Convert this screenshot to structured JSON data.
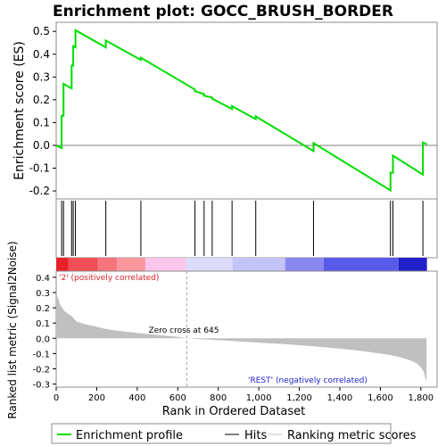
{
  "chart_data": {
    "type": "line",
    "title": "Enrichment plot: GOCC_BRUSH_BORDER",
    "top_panel": {
      "ylabel": "Enrichment score (ES)",
      "ylim": [
        -0.235,
        0.54
      ],
      "yticks": [
        -0.2,
        -0.1,
        0.0,
        0.1,
        0.2,
        0.3,
        0.4,
        0.5
      ],
      "ytick_labels": [
        "-0.2",
        "-0.1",
        "0.0",
        "0.1",
        "0.2",
        "0.3",
        "0.4",
        "0.5"
      ],
      "series_name": "Enrichment profile",
      "color": "#00dd00",
      "points": [
        [
          0,
          0
        ],
        [
          27,
          -0.012
        ],
        [
          27,
          0.13
        ],
        [
          36,
          0.13
        ],
        [
          36,
          0.27
        ],
        [
          76,
          0.25
        ],
        [
          76,
          0.35
        ],
        [
          84,
          0.35
        ],
        [
          84,
          0.435
        ],
        [
          95,
          0.43
        ],
        [
          95,
          0.505
        ],
        [
          245,
          0.43
        ],
        [
          245,
          0.46
        ],
        [
          418,
          0.375
        ],
        [
          418,
          0.385
        ],
        [
          685,
          0.245
        ],
        [
          685,
          0.238
        ],
        [
          730,
          0.225
        ],
        [
          730,
          0.218
        ],
        [
          770,
          0.21
        ],
        [
          770,
          0.205
        ],
        [
          868,
          0.16
        ],
        [
          868,
          0.172
        ],
        [
          985,
          0.115
        ],
        [
          985,
          0.127
        ],
        [
          1270,
          -0.025
        ],
        [
          1270,
          0.01
        ],
        [
          1650,
          -0.198
        ],
        [
          1650,
          -0.12
        ],
        [
          1662,
          -0.12
        ],
        [
          1662,
          -0.045
        ],
        [
          1810,
          -0.128
        ],
        [
          1810,
          0.012
        ],
        [
          1830,
          0.005
        ]
      ]
    },
    "hits": [
      27,
      36,
      76,
      84,
      95,
      245,
      418,
      685,
      730,
      770,
      868,
      985,
      1270,
      1650,
      1662,
      1810
    ],
    "hits_label": "Hits",
    "bottom_panel": {
      "ylabel": "Ranked list metric (Signal2Noise)",
      "ylim": [
        -0.32,
        0.44
      ],
      "yticks": [
        -0.3,
        -0.2,
        -0.1,
        0.0,
        0.1,
        0.2,
        0.3,
        0.4
      ],
      "ytick_labels": [
        "-0.3",
        "-0.2",
        "-0.1",
        "0.0",
        "0.1",
        "0.2",
        "0.3",
        "0.4"
      ],
      "series_name": "Ranking metric scores",
      "color": "#c0c0c0",
      "points": [
        [
          0,
          0.3
        ],
        [
          20,
          0.22
        ],
        [
          40,
          0.18
        ],
        [
          80,
          0.14
        ],
        [
          100,
          0.11
        ],
        [
          150,
          0.09
        ],
        [
          200,
          0.075
        ],
        [
          250,
          0.06
        ],
        [
          300,
          0.05
        ],
        [
          400,
          0.035
        ],
        [
          500,
          0.022
        ],
        [
          600,
          0.01
        ],
        [
          645,
          0.0
        ],
        [
          700,
          -0.005
        ],
        [
          800,
          -0.012
        ],
        [
          900,
          -0.02
        ],
        [
          1000,
          -0.028
        ],
        [
          1100,
          -0.036
        ],
        [
          1200,
          -0.045
        ],
        [
          1300,
          -0.056
        ],
        [
          1400,
          -0.068
        ],
        [
          1500,
          -0.082
        ],
        [
          1600,
          -0.1
        ],
        [
          1650,
          -0.11
        ],
        [
          1700,
          -0.125
        ],
        [
          1750,
          -0.145
        ],
        [
          1780,
          -0.165
        ],
        [
          1800,
          -0.19
        ],
        [
          1815,
          -0.22
        ],
        [
          1822,
          -0.26
        ],
        [
          1828,
          -0.28
        ]
      ],
      "zero_cross_label": "Zero cross at 645",
      "zero_cross": 645,
      "pos_label": "'2' (positively correlated)",
      "neg_label": "'REST' (negatively correlated)"
    },
    "xlabel": "Rank in Ordered Dataset",
    "xlim": [
      0,
      1880
    ],
    "xticks": [
      0,
      200,
      400,
      600,
      800,
      1000,
      1200,
      1400,
      1600,
      1800
    ],
    "xtick_labels": [
      "0",
      "200",
      "400",
      "600",
      "800",
      "1,000",
      "1,200",
      "1,400",
      "1,600",
      "1,800"
    ],
    "n_genes": 1830,
    "heat_bar_segments": [
      {
        "start": 0,
        "end": 60,
        "color": "#e8202a"
      },
      {
        "start": 60,
        "end": 205,
        "color": "#f04f56"
      },
      {
        "start": 205,
        "end": 300,
        "color": "#f6747b"
      },
      {
        "start": 300,
        "end": 440,
        "color": "#fa969c"
      },
      {
        "start": 440,
        "end": 640,
        "color": "#fcc6ec"
      },
      {
        "start": 640,
        "end": 870,
        "color": "#dcdcfa"
      },
      {
        "start": 870,
        "end": 1130,
        "color": "#c4c4f8"
      },
      {
        "start": 1130,
        "end": 1320,
        "color": "#8888f0"
      },
      {
        "start": 1320,
        "end": 1690,
        "color": "#5a5ae8"
      },
      {
        "start": 1690,
        "end": 1830,
        "color": "#2020c8"
      }
    ],
    "legend": [
      {
        "label": "Enrichment profile",
        "color": "#00dd00"
      },
      {
        "label": "Hits",
        "color": "#000000"
      },
      {
        "label": "Ranking metric scores",
        "color": "#c0c0c0"
      }
    ],
    "legend_placement": "bottom"
  }
}
